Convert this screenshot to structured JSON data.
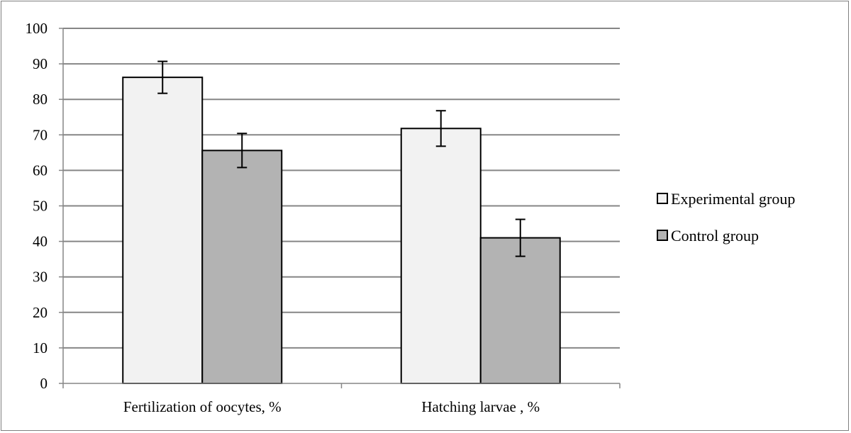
{
  "chart_data": {
    "type": "bar",
    "categories": [
      "Fertilization of oocytes, %",
      "Hatching larvae , %"
    ],
    "series": [
      {
        "name": "Experimental group",
        "values": [
          86.2,
          71.8
        ],
        "errors": [
          4.5,
          5.0
        ],
        "color": "#f2f2f2"
      },
      {
        "name": "Control group",
        "values": [
          65.6,
          41.0
        ],
        "errors": [
          4.8,
          5.2
        ],
        "color": "#b3b3b3"
      }
    ],
    "ylim": [
      0,
      100
    ],
    "yticks": [
      0,
      10,
      20,
      30,
      40,
      50,
      60,
      70,
      80,
      90,
      100
    ],
    "grid": true,
    "legend_position": "right"
  }
}
